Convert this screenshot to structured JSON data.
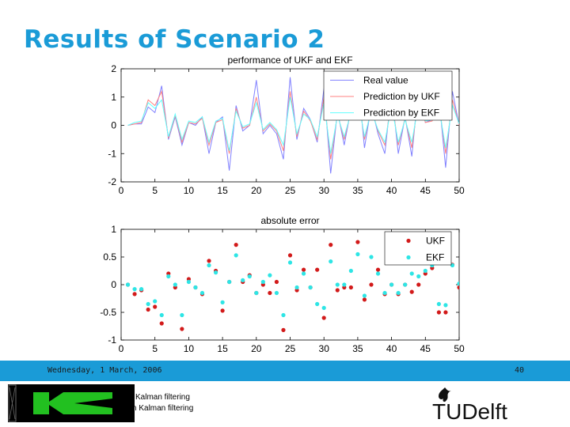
{
  "slide": {
    "title": "Results of Scenario 2",
    "footer_date": "Wednesday, 1 March, 2006",
    "page_number": "40",
    "course_line_1": "Kalman filtering",
    "course_line_2": "n Kalman filtering",
    "tud_logo_text": "TUDelft"
  },
  "colors": {
    "accent": "#1a9bd7",
    "real": "#8080ff",
    "ukf": "#ff8080",
    "ekf": "#60ffff",
    "ukf_marker": "#d21a1a",
    "ekf_marker": "#2ee5e5",
    "logo_green": "#22c020"
  },
  "chart_data": [
    {
      "type": "line",
      "title": "performance of UKF and EKF",
      "xlim": [
        0,
        50
      ],
      "ylim": [
        -2,
        2
      ],
      "xticks": [
        0,
        5,
        10,
        15,
        20,
        25,
        30,
        35,
        40,
        45,
        50
      ],
      "yticks": [
        2,
        1,
        0,
        -1,
        -2
      ],
      "legend_position": "top-right",
      "x": [
        1,
        2,
        3,
        4,
        5,
        6,
        7,
        8,
        9,
        10,
        11,
        12,
        13,
        14,
        15,
        16,
        17,
        18,
        19,
        20,
        21,
        22,
        23,
        24,
        25,
        26,
        27,
        28,
        29,
        30,
        31,
        32,
        33,
        34,
        35,
        36,
        37,
        38,
        39,
        40,
        41,
        42,
        43,
        44,
        45,
        46,
        47,
        48,
        49,
        50
      ],
      "series": [
        {
          "name": "Real value",
          "color_key": "real",
          "values": [
            0.0,
            0.05,
            0.05,
            0.65,
            0.45,
            1.4,
            -0.5,
            0.3,
            -0.7,
            0.1,
            0.0,
            0.3,
            -1.0,
            0.1,
            0.3,
            -1.6,
            0.7,
            -0.2,
            0.0,
            1.6,
            -0.3,
            0.0,
            -0.3,
            -1.2,
            1.7,
            -0.5,
            0.6,
            0.2,
            -0.6,
            1.3,
            -1.7,
            0.5,
            -0.7,
            0.6,
            1.7,
            -0.8,
            0.7,
            -0.3,
            -1.0,
            1.2,
            -1.0,
            0.3,
            -1.1,
            1.4,
            0.1,
            0.2,
            1.0,
            -1.5,
            1.2,
            0.0
          ]
        },
        {
          "name": "Prediction by UKF",
          "color_key": "ukf",
          "values": [
            0.0,
            0.05,
            0.1,
            0.9,
            0.7,
            1.2,
            -0.45,
            0.35,
            -0.6,
            0.1,
            0.05,
            0.25,
            -0.7,
            0.1,
            0.2,
            -1.0,
            0.6,
            -0.1,
            0.0,
            1.0,
            -0.2,
            0.05,
            -0.2,
            -0.9,
            1.2,
            -0.4,
            0.5,
            0.15,
            -0.5,
            1.0,
            -1.2,
            0.4,
            -0.5,
            0.5,
            1.2,
            -0.5,
            0.6,
            -0.2,
            -0.7,
            0.9,
            -0.7,
            0.25,
            -0.8,
            1.0,
            0.1,
            0.15,
            0.8,
            -1.0,
            0.9,
            0.0
          ]
        },
        {
          "name": "Prediction by EKF",
          "color_key": "ekf",
          "values": [
            0.0,
            0.1,
            0.15,
            0.8,
            0.6,
            0.9,
            -0.4,
            0.4,
            -0.5,
            0.15,
            0.1,
            0.3,
            -0.6,
            0.15,
            0.25,
            -0.9,
            0.5,
            -0.05,
            0.05,
            0.8,
            -0.15,
            0.1,
            -0.15,
            -0.7,
            1.0,
            -0.3,
            0.4,
            0.2,
            -0.4,
            0.8,
            -1.0,
            0.35,
            -0.4,
            0.45,
            1.0,
            -0.4,
            0.5,
            -0.15,
            -0.6,
            0.7,
            -0.6,
            0.2,
            -0.6,
            0.8,
            0.15,
            0.2,
            0.65,
            -0.8,
            0.7,
            0.05
          ]
        }
      ]
    },
    {
      "type": "scatter",
      "title": "absolute error",
      "xlim": [
        0,
        50
      ],
      "ylim": [
        -1,
        1
      ],
      "xticks": [
        0,
        5,
        10,
        15,
        20,
        25,
        30,
        35,
        40,
        45,
        50
      ],
      "yticks": [
        1,
        0.5,
        0,
        -0.5,
        -1
      ],
      "legend_position": "top-right",
      "x": [
        1,
        2,
        3,
        4,
        5,
        6,
        7,
        8,
        9,
        10,
        11,
        12,
        13,
        14,
        15,
        16,
        17,
        18,
        19,
        20,
        21,
        22,
        23,
        24,
        25,
        26,
        27,
        28,
        29,
        30,
        31,
        32,
        33,
        34,
        35,
        36,
        37,
        38,
        39,
        40,
        41,
        42,
        43,
        44,
        45,
        46,
        47,
        48,
        49,
        50
      ],
      "series": [
        {
          "name": "UKF",
          "marker_color_key": "ukf_marker",
          "values": [
            0.0,
            -0.17,
            -0.1,
            -0.45,
            -0.4,
            -0.7,
            0.2,
            -0.05,
            -0.8,
            0.1,
            -0.05,
            -0.17,
            0.43,
            0.25,
            -0.47,
            0.05,
            0.72,
            0.05,
            0.17,
            -0.15,
            0.0,
            -0.15,
            0.05,
            -0.82,
            0.53,
            -0.1,
            0.27,
            -0.05,
            0.27,
            -0.6,
            0.72,
            -0.1,
            -0.05,
            -0.05,
            0.77,
            -0.27,
            0.0,
            0.27,
            -0.17,
            0.0,
            -0.17,
            0.0,
            -0.13,
            0.0,
            0.2,
            0.3,
            -0.5,
            -0.5,
            0.36,
            -0.05
          ]
        },
        {
          "name": "EKF",
          "marker_color_key": "ekf_marker",
          "values": [
            0.0,
            -0.08,
            -0.08,
            -0.35,
            -0.3,
            -0.55,
            0.15,
            0.0,
            -0.55,
            0.05,
            -0.05,
            -0.15,
            0.35,
            0.22,
            -0.32,
            0.05,
            0.53,
            0.08,
            0.15,
            -0.15,
            0.05,
            0.17,
            -0.15,
            -0.55,
            0.4,
            -0.05,
            0.2,
            -0.05,
            -0.35,
            -0.42,
            0.42,
            0.0,
            0.0,
            0.25,
            0.55,
            -0.2,
            0.5,
            0.2,
            -0.15,
            0.0,
            -0.15,
            0.0,
            0.2,
            0.15,
            0.25,
            0.35,
            -0.35,
            -0.37,
            0.35,
            0.02
          ]
        }
      ]
    }
  ]
}
